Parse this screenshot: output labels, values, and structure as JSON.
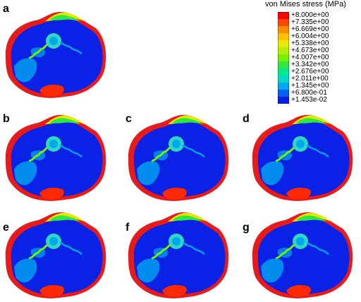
{
  "legend": {
    "title": "von Mises stress (MPa)",
    "labels": [
      "+8.000e+00",
      "+7.335e+00",
      "+6.669e+00",
      "+6.004e+00",
      "+5.338e+00",
      "+4.673e+00",
      "+4.007e+00",
      "+3.342e+00",
      "+2.676e+00",
      "+2.011e+00",
      "+1.345e+00",
      "+6.800e-01",
      "+1.453e-02"
    ],
    "colors": [
      "#ff0000",
      "#ff4800",
      "#ff8c00",
      "#ffc000",
      "#e8e800",
      "#b4f000",
      "#78f000",
      "#30e840",
      "#00e890",
      "#00d8c8",
      "#00a8f0",
      "#0060f0",
      "#0020e8"
    ]
  },
  "panels": [
    {
      "letter": "a"
    },
    {
      "letter": "b"
    },
    {
      "letter": "c"
    },
    {
      "letter": "d"
    },
    {
      "letter": "e"
    },
    {
      "letter": "f"
    },
    {
      "letter": "g"
    }
  ]
}
